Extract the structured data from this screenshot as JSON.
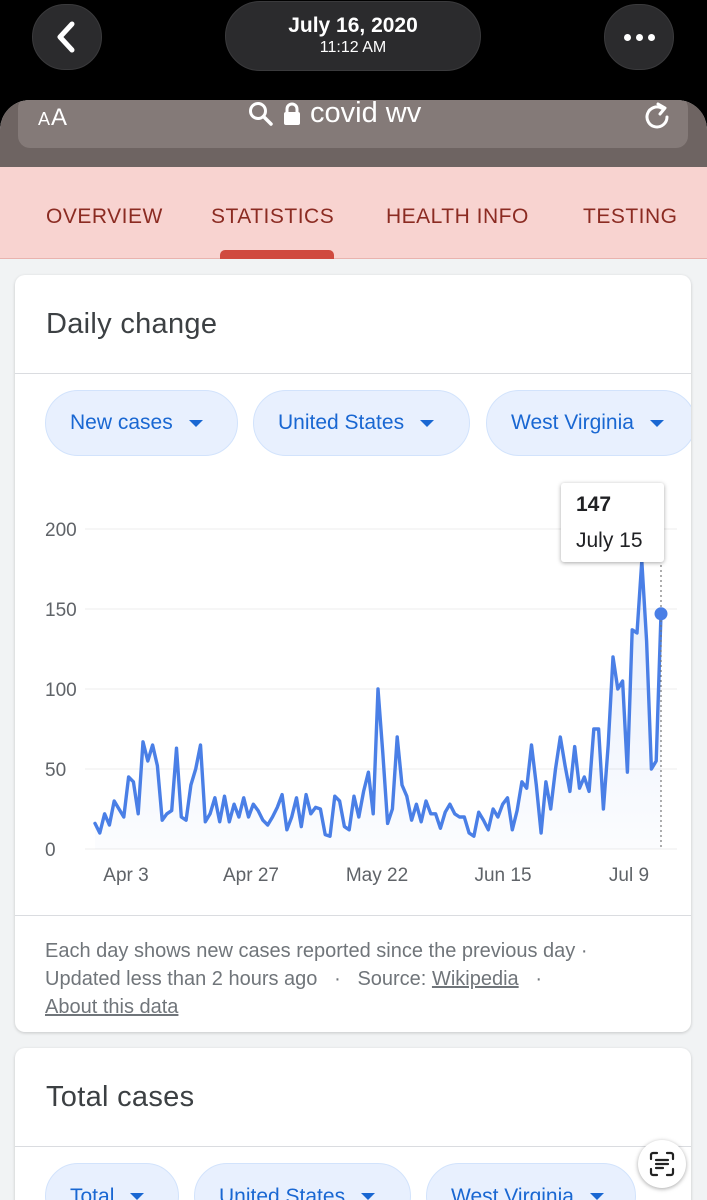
{
  "viewer": {
    "date": "July 16, 2020",
    "time": "11:12 AM",
    "icons": {
      "back": "chevron-left-icon",
      "more": "more-horizontal-icon"
    }
  },
  "browser": {
    "text_size_label": "AA",
    "query": "covid wv",
    "icons": {
      "search": "search-icon",
      "lock": "lock-icon",
      "reload": "reload-icon"
    }
  },
  "tabs": [
    {
      "label": "OVERVIEW"
    },
    {
      "label": "STATISTICS",
      "active": true
    },
    {
      "label": "HEALTH INFO"
    },
    {
      "label": "TESTING"
    }
  ],
  "daily_card": {
    "title": "Daily change",
    "filters": [
      {
        "label": "New cases"
      },
      {
        "label": "United States"
      },
      {
        "label": "West Virginia"
      }
    ],
    "tooltip": {
      "value": "147",
      "date": "July 15"
    },
    "footnote": {
      "line1": "Each day shows new cases reported since the previous day ·",
      "updated": "Updated less than 2 hours ago",
      "source_label": "Source:",
      "source_link": "Wikipedia",
      "about": "About this data"
    }
  },
  "total_card": {
    "title": "Total cases",
    "filters": [
      {
        "label": "Total"
      },
      {
        "label": "United States"
      },
      {
        "label": "West Virginia"
      }
    ]
  },
  "colors": {
    "line": "#4a7fe6",
    "accent_tab": "#d04a3f",
    "chip_text": "#1967d2"
  },
  "chart_data": {
    "type": "line",
    "x_ticks": [
      "Apr 3",
      "Apr 27",
      "May 22",
      "Jun 15",
      "Jul 9"
    ],
    "ylim": [
      0,
      200
    ],
    "y_ticks": [
      0,
      50,
      100,
      150,
      200
    ],
    "grid": true,
    "series": [
      {
        "values": [
          16,
          10,
          22,
          15,
          30,
          25,
          20,
          45,
          42,
          22,
          67,
          55,
          65,
          52,
          18,
          22,
          24,
          63,
          20,
          18,
          40,
          50,
          65,
          17,
          22,
          32,
          17,
          33,
          17,
          28,
          20,
          32,
          20,
          28,
          24,
          18,
          15,
          20,
          26,
          34,
          12,
          20,
          32,
          14,
          34,
          22,
          26,
          25,
          9,
          8,
          33,
          30,
          14,
          12,
          33,
          20,
          36,
          48,
          22,
          100,
          60,
          16,
          25,
          70,
          40,
          33,
          18,
          28,
          17,
          30,
          22,
          22,
          13,
          23,
          28,
          22,
          20,
          20,
          10,
          8,
          23,
          18,
          12,
          25,
          20,
          28,
          32,
          12,
          24,
          42,
          38,
          65,
          40,
          10,
          42,
          25,
          50,
          70,
          52,
          36,
          64,
          38,
          45,
          36,
          75,
          75,
          25,
          65,
          120,
          100,
          105,
          48,
          137,
          135,
          180,
          130,
          50,
          55,
          147
        ]
      }
    ]
  }
}
